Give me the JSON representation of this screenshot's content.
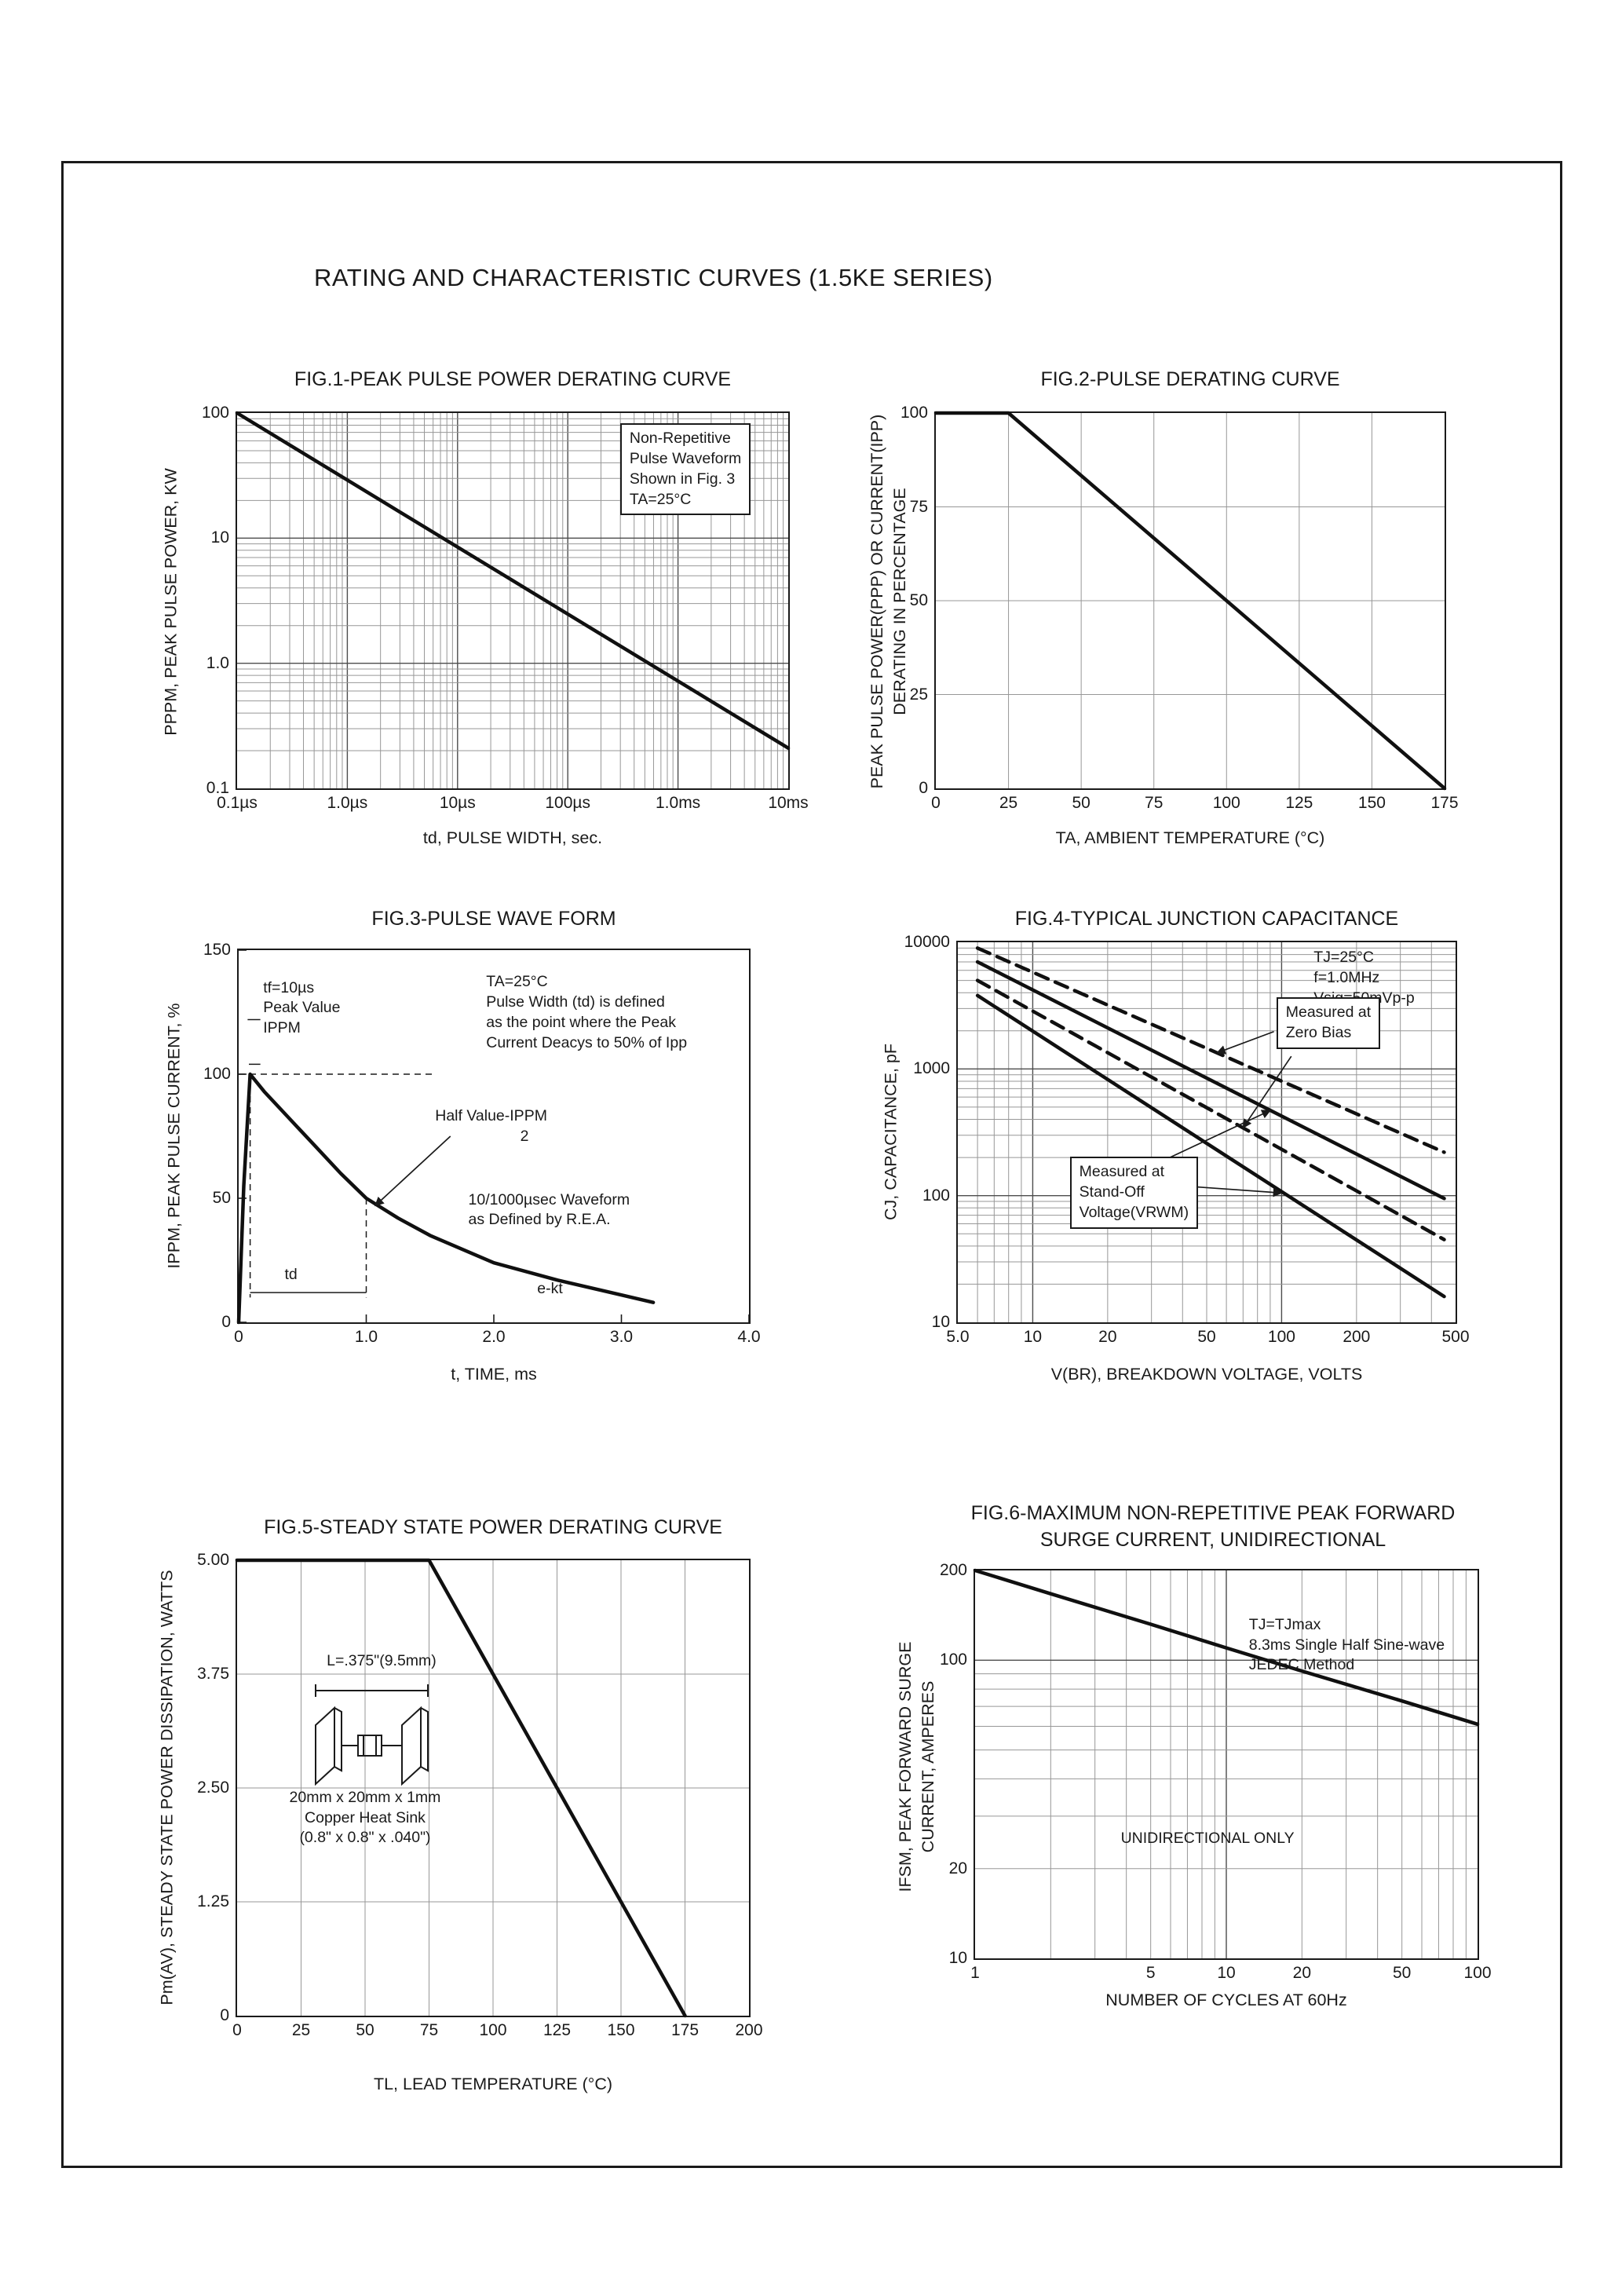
{
  "page": {
    "title": "RATING AND CHARACTERISTIC CURVES (1.5KE SERIES)"
  },
  "chart_data": [
    {
      "id": "fig1",
      "type": "line",
      "title": "FIG.1-PEAK PULSE POWER DERATING CURVE",
      "xlabel": "td, PULSE WIDTH, sec.",
      "ylabel": "PPPM, PEAK PULSE POWER, KW",
      "xscale": "log",
      "yscale": "log",
      "xdomain": [
        1e-07,
        0.01
      ],
      "ydomain": [
        0.1,
        100
      ],
      "grid": "log",
      "xticks": [
        {
          "v": 1e-07,
          "t": "0.1µs"
        },
        {
          "v": 1e-06,
          "t": "1.0µs"
        },
        {
          "v": 1e-05,
          "t": "10µs"
        },
        {
          "v": 0.0001,
          "t": "100µs"
        },
        {
          "v": 0.001,
          "t": "1.0ms"
        },
        {
          "v": 0.01,
          "t": "10ms"
        }
      ],
      "yticks": [
        {
          "v": 100,
          "t": "100"
        },
        {
          "v": 10,
          "t": "10"
        },
        {
          "v": 1,
          "t": "1.0"
        },
        {
          "v": 0.1,
          "t": "0.1"
        }
      ],
      "series": [
        {
          "name": "peak-pulse-power",
          "dash": false,
          "points": [
            [
              1e-07,
              100
            ],
            [
              0.01,
              0.21
            ]
          ]
        }
      ],
      "annotations": [
        {
          "name": "condition-note",
          "t": "Non-Repetitive\nPulse Waveform\nShown in Fig. 3\nTA=25°C",
          "fx": 0.695,
          "fy": 0.028,
          "box": true
        }
      ]
    },
    {
      "id": "fig2",
      "type": "line",
      "title": "FIG.2-PULSE DERATING CURVE",
      "xlabel": "TA, AMBIENT TEMPERATURE (°C)",
      "ylabel": "PEAK PULSE POWER(PPP) OR CURRENT(IPP)\nDERATING IN PERCENTAGE",
      "xscale": "linear",
      "yscale": "linear",
      "xdomain": [
        0,
        175
      ],
      "ydomain": [
        0,
        100
      ],
      "grid": "full",
      "xticks": [
        {
          "v": 0,
          "t": "0"
        },
        {
          "v": 25,
          "t": "25"
        },
        {
          "v": 50,
          "t": "50"
        },
        {
          "v": 75,
          "t": "75"
        },
        {
          "v": 100,
          "t": "100"
        },
        {
          "v": 125,
          "t": "125"
        },
        {
          "v": 150,
          "t": "150"
        },
        {
          "v": 175,
          "t": "175"
        }
      ],
      "yticks": [
        {
          "v": 100,
          "t": "100"
        },
        {
          "v": 75,
          "t": "75"
        },
        {
          "v": 50,
          "t": "50"
        },
        {
          "v": 25,
          "t": "25"
        },
        {
          "v": 0,
          "t": "0"
        }
      ],
      "series": [
        {
          "name": "pulse-derating",
          "dash": false,
          "points": [
            [
              0,
              100
            ],
            [
              25,
              100
            ],
            [
              175,
              0
            ]
          ]
        }
      ],
      "annotations": []
    },
    {
      "id": "fig3",
      "type": "line",
      "title": "FIG.3-PULSE WAVE FORM",
      "xlabel": "t, TIME, ms",
      "ylabel": "IPPM, PEAK PULSE CURRENT, %",
      "xscale": "linear",
      "yscale": "linear",
      "xdomain": [
        0,
        4
      ],
      "ydomain": [
        0,
        150
      ],
      "grid": "ticks",
      "xticks": [
        {
          "v": 0,
          "t": "0"
        },
        {
          "v": 1,
          "t": "1.0"
        },
        {
          "v": 2,
          "t": "2.0"
        },
        {
          "v": 3,
          "t": "3.0"
        },
        {
          "v": 4,
          "t": "4.0"
        }
      ],
      "yticks": [
        {
          "v": 0,
          "t": "0"
        },
        {
          "v": 50,
          "t": "50"
        },
        {
          "v": 100,
          "t": "100"
        },
        {
          "v": 150,
          "t": "150"
        }
      ],
      "series": [
        {
          "name": "pulse-waveform",
          "dash": false,
          "points": [
            [
              0,
              0
            ],
            [
              0.04,
              55
            ],
            [
              0.09,
              100
            ],
            [
              0.2,
              93
            ],
            [
              0.4,
              82
            ],
            [
              0.6,
              71
            ],
            [
              0.8,
              60
            ],
            [
              1,
              50
            ],
            [
              1.25,
              42
            ],
            [
              1.5,
              35
            ],
            [
              2,
              24
            ],
            [
              2.5,
              17
            ],
            [
              3,
              11
            ],
            [
              3.25,
              8
            ]
          ]
        }
      ],
      "guides": [
        {
          "x1": 0,
          "y1": 100,
          "x2": 1.55,
          "y2": 100,
          "dash": true
        },
        {
          "x1": 0.09,
          "y1": 100,
          "x2": 0.09,
          "y2": 10,
          "dash": true
        },
        {
          "x1": 1,
          "y1": 50,
          "x2": 1,
          "y2": 10,
          "dash": true
        },
        {
          "x1": 0.09,
          "y1": 12,
          "x2": 1,
          "y2": 12,
          "dash": false
        },
        {
          "x1": 0.07,
          "y1": 122,
          "x2": 0.17,
          "y2": 122,
          "dash": false
        },
        {
          "x1": 0.08,
          "y1": 104,
          "x2": 0.17,
          "y2": 104,
          "dash": false
        }
      ],
      "arrows": [
        {
          "ffrom": [
            0.415,
            0.5
          ],
          "to": [
            1.07,
            47
          ]
        }
      ],
      "annotations": [
        {
          "name": "rise-time-note",
          "t": "tf=10µs\nPeak Value\nIPPM",
          "fx": 0.048,
          "fy": 0.075
        },
        {
          "name": "pulse-width-note",
          "t": "TA=25°C\nPulse Width (td) is defined\nas the point where the Peak\nCurrent Deacys to 50% of Ipp",
          "fx": 0.485,
          "fy": 0.06
        },
        {
          "name": "half-value-note",
          "t": "Half Value-IPPM\n                    2",
          "fx": 0.385,
          "fy": 0.42
        },
        {
          "name": "waveform-note",
          "t": "10/1000µsec Waveform\nas Defined by R.E.A.",
          "fx": 0.45,
          "fy": 0.645
        },
        {
          "name": "td-label",
          "t": "td",
          "fx": 0.09,
          "fy": 0.845
        },
        {
          "name": "e-kt-label",
          "t": "e-kt",
          "fx": 0.585,
          "fy": 0.885
        }
      ]
    },
    {
      "id": "fig4",
      "type": "line",
      "title": "FIG.4-TYPICAL JUNCTION CAPACITANCE",
      "xlabel": "V(BR), BREAKDOWN VOLTAGE, VOLTS",
      "ylabel": "CJ, CAPACITANCE, pF",
      "xscale": "log",
      "yscale": "log",
      "xdomain": [
        5,
        500
      ],
      "ydomain": [
        10,
        10000
      ],
      "grid": "log",
      "xticks": [
        {
          "v": 5,
          "t": "5.0"
        },
        {
          "v": 10,
          "t": "10"
        },
        {
          "v": 20,
          "t": "20"
        },
        {
          "v": 50,
          "t": "50"
        },
        {
          "v": 100,
          "t": "100"
        },
        {
          "v": 200,
          "t": "200"
        },
        {
          "v": 500,
          "t": "500"
        }
      ],
      "yticks": [
        {
          "v": 10000,
          "t": "10000"
        },
        {
          "v": 1000,
          "t": "1000"
        },
        {
          "v": 100,
          "t": "100"
        },
        {
          "v": 10,
          "t": "10"
        }
      ],
      "series": [
        {
          "name": "zero-bias-upper",
          "dash": true,
          "points": [
            [
              6,
              9000
            ],
            [
              450,
              220
            ]
          ]
        },
        {
          "name": "stand-off-upper",
          "dash": false,
          "points": [
            [
              6,
              7000
            ],
            [
              450,
              95
            ]
          ]
        },
        {
          "name": "zero-bias-lower",
          "dash": true,
          "points": [
            [
              6,
              5000
            ],
            [
              450,
              45
            ]
          ]
        },
        {
          "name": "stand-off-lower",
          "dash": false,
          "points": [
            [
              6,
              3800
            ],
            [
              450,
              16
            ]
          ]
        }
      ],
      "arrows": [
        {
          "ffrom": [
            0.635,
            0.235
          ],
          "to": [
            55,
            1340
          ]
        },
        {
          "ffrom": [
            0.67,
            0.3
          ],
          "to": [
            70,
            343
          ]
        },
        {
          "ffrom": [
            0.42,
            0.57
          ],
          "to": [
            90,
            470
          ]
        },
        {
          "ffrom": [
            0.44,
            0.64
          ],
          "to": [
            100,
            105
          ]
        }
      ],
      "annotations": [
        {
          "name": "test-conditions",
          "t": "TJ=25°C\nf=1.0MHz\nVsig=50mVp-p",
          "fx": 0.715,
          "fy": 0.015
        },
        {
          "name": "zero-bias-note",
          "t": "Measured at\nZero Bias",
          "fx": 0.64,
          "fy": 0.145,
          "box": true
        },
        {
          "name": "stand-off-note",
          "t": "Measured at\nStand-Off\nVoltage(VRWM)",
          "fx": 0.225,
          "fy": 0.565,
          "box": true
        }
      ]
    },
    {
      "id": "fig5",
      "type": "line",
      "title": "FIG.5-STEADY STATE POWER DERATING CURVE",
      "xlabel": "TL, LEAD TEMPERATURE (°C)",
      "ylabel": "Pm(AV), STEADY STATE POWER DISSIPATION, WATTS",
      "xscale": "linear",
      "yscale": "linear",
      "xdomain": [
        0,
        200
      ],
      "ydomain": [
        0,
        5
      ],
      "grid": "full",
      "xticks": [
        {
          "v": 0,
          "t": "0"
        },
        {
          "v": 25,
          "t": "25"
        },
        {
          "v": 50,
          "t": "50"
        },
        {
          "v": 75,
          "t": "75"
        },
        {
          "v": 100,
          "t": "100"
        },
        {
          "v": 125,
          "t": "125"
        },
        {
          "v": 150,
          "t": "150"
        },
        {
          "v": 175,
          "t": "175"
        },
        {
          "v": 200,
          "t": "200"
        }
      ],
      "yticks": [
        {
          "v": 5,
          "t": "5.00"
        },
        {
          "v": 3.75,
          "t": "3.75"
        },
        {
          "v": 2.5,
          "t": "2.50"
        },
        {
          "v": 1.25,
          "t": "1.25"
        },
        {
          "v": 0,
          "t": "0"
        }
      ],
      "series": [
        {
          "name": "power-derating",
          "dash": false,
          "points": [
            [
              0,
              5
            ],
            [
              75,
              5
            ],
            [
              175,
              0
            ]
          ]
        }
      ],
      "diagram": "heatsink",
      "annotations": [
        {
          "name": "lead-length-note",
          "t": "L=.375\"(9.5mm)",
          "fx": 0.175,
          "fy": 0.2
        },
        {
          "name": "heatsink-note",
          "t": "20mm x 20mm x 1mm\nCopper Heat Sink\n(0.8\" x 0.8\" x .040\")",
          "fx": 0.085,
          "fy": 0.5,
          "align": "center",
          "w": 0.33
        }
      ]
    },
    {
      "id": "fig6",
      "type": "line",
      "title": "FIG.6-MAXIMUM NON-REPETITIVE PEAK FORWARD\nSURGE CURRENT, UNIDIRECTIONAL",
      "xlabel": "NUMBER OF CYCLES AT 60Hz",
      "ylabel": "IFSM, PEAK FORWARD SURGE\nCURRENT, AMPERES",
      "xscale": "log",
      "yscale": "log",
      "xdomain": [
        1,
        100
      ],
      "ydomain": [
        10,
        200
      ],
      "grid": "log",
      "xticks": [
        {
          "v": 1,
          "t": "1"
        },
        {
          "v": 5,
          "t": "5"
        },
        {
          "v": 10,
          "t": "10"
        },
        {
          "v": 20,
          "t": "20"
        },
        {
          "v": 50,
          "t": "50"
        },
        {
          "v": 100,
          "t": "100"
        }
      ],
      "yticks": [
        {
          "v": 200,
          "t": "200"
        },
        {
          "v": 100,
          "t": "100"
        },
        {
          "v": 20,
          "t": "20"
        },
        {
          "v": 10,
          "t": "10"
        }
      ],
      "series": [
        {
          "name": "surge-current",
          "dash": false,
          "points": [
            [
              1,
              200
            ],
            [
              2,
              167
            ],
            [
              5,
              132
            ],
            [
              10,
              110
            ],
            [
              20,
              92
            ],
            [
              50,
              73
            ],
            [
              100,
              61
            ]
          ]
        }
      ],
      "annotations": [
        {
          "name": "test-conditions",
          "t": "TJ=TJmax\n8.3ms Single Half Sine-wave\nJEDEC Method",
          "fx": 0.545,
          "fy": 0.115
        },
        {
          "name": "unidirectional-note",
          "t": "UNIDIRECTIONAL ONLY",
          "fx": 0.29,
          "fy": 0.665
        }
      ]
    }
  ]
}
